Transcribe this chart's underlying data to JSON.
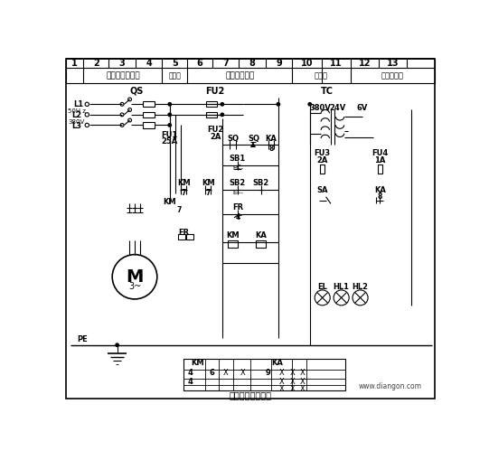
{
  "title": "砂磨机电气原理图",
  "watermark": "www.diangon.com",
  "bg_color": "#ffffff",
  "col_numbers": [
    "1",
    "2",
    "3",
    "4",
    "5",
    "6",
    "7",
    "8",
    "9",
    "10",
    "11",
    "12",
    "13"
  ],
  "col_labels": [
    "电源开关及保护",
    "主电机",
    "启停控制电路",
    "变压器",
    "照明及信号"
  ],
  "fig_width": 5.41,
  "fig_height": 4.99,
  "dpi": 100
}
